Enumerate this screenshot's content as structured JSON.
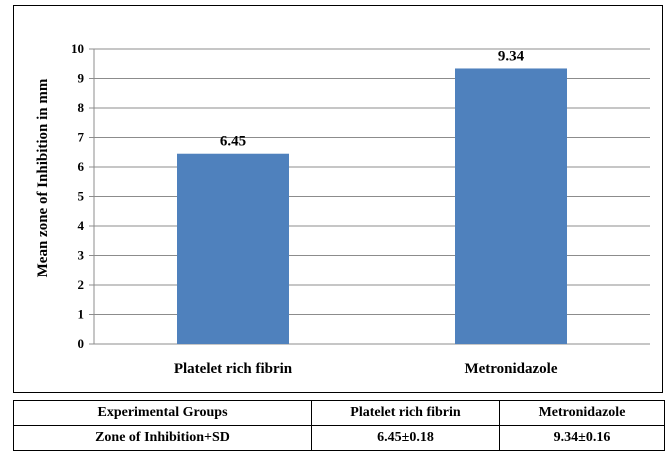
{
  "chart_data": {
    "type": "bar",
    "categories": [
      "Platelet rich fibrin",
      "Metronidazole"
    ],
    "values": [
      6.45,
      9.34
    ],
    "data_labels": [
      "6.45",
      "9.34"
    ],
    "ylabel": "Mean zone of Inhibition in mm",
    "ylim": [
      0,
      10
    ],
    "yticks": [
      0,
      1,
      2,
      3,
      4,
      5,
      6,
      7,
      8,
      9,
      10
    ],
    "grid": true,
    "bar_color": "#4f81bd"
  },
  "table": {
    "header": [
      "Experimental Groups",
      "Platelet rich fibrin",
      "Metronidazole"
    ],
    "row": [
      "Zone of Inhibition+SD",
      "6.45±0.18",
      "9.34±0.16"
    ]
  }
}
